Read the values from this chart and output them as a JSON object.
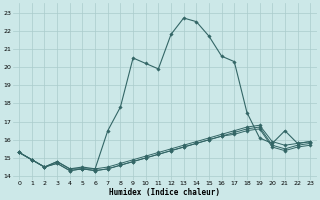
{
  "xlabel": "Humidex (Indice chaleur)",
  "bg_color": "#cce8e8",
  "grid_color": "#aacccc",
  "line_color": "#336666",
  "xlim": [
    -0.5,
    23.5
  ],
  "ylim": [
    13.8,
    23.5
  ],
  "yticks": [
    14,
    15,
    16,
    17,
    18,
    19,
    20,
    21,
    22,
    23
  ],
  "xticks": [
    0,
    1,
    2,
    3,
    4,
    5,
    6,
    7,
    8,
    9,
    10,
    11,
    12,
    13,
    14,
    15,
    16,
    17,
    18,
    19,
    20,
    21,
    22,
    23
  ],
  "series1_x": [
    0,
    1,
    2,
    3,
    4,
    5,
    6,
    7,
    8,
    9,
    10,
    11,
    12,
    13,
    14,
    15,
    16,
    17,
    18,
    19,
    20,
    21,
    22,
    23
  ],
  "series1_y": [
    15.3,
    14.9,
    14.5,
    14.8,
    14.4,
    14.5,
    14.4,
    16.5,
    17.8,
    20.5,
    20.2,
    19.9,
    21.8,
    22.7,
    22.5,
    21.7,
    20.6,
    20.3,
    17.5,
    16.1,
    15.8,
    16.5,
    15.8,
    15.9
  ],
  "series2_x": [
    0,
    1,
    2,
    3,
    4,
    5,
    6,
    7,
    8,
    9,
    10,
    11,
    12,
    13,
    14,
    15,
    16,
    17,
    18,
    19,
    20,
    21,
    22,
    23
  ],
  "series2_y": [
    15.3,
    14.9,
    14.5,
    14.8,
    14.4,
    14.4,
    14.4,
    14.5,
    14.7,
    14.9,
    15.1,
    15.3,
    15.5,
    15.7,
    15.9,
    16.1,
    16.3,
    16.5,
    16.7,
    16.8,
    15.9,
    15.7,
    15.8,
    15.9
  ],
  "series3_x": [
    0,
    1,
    2,
    3,
    4,
    5,
    6,
    7,
    8,
    9,
    10,
    11,
    12,
    13,
    14,
    15,
    16,
    17,
    18,
    19,
    20,
    21,
    22,
    23
  ],
  "series3_y": [
    15.3,
    14.9,
    14.5,
    14.7,
    14.3,
    14.4,
    14.3,
    14.4,
    14.6,
    14.8,
    15.0,
    15.2,
    15.4,
    15.6,
    15.8,
    16.0,
    16.2,
    16.4,
    16.6,
    16.7,
    15.7,
    15.5,
    15.7,
    15.8
  ],
  "series4_x": [
    0,
    1,
    2,
    3,
    4,
    5,
    6,
    7,
    8,
    9,
    10,
    11,
    12,
    13,
    14,
    15,
    16,
    17,
    18,
    19,
    20,
    21,
    22,
    23
  ],
  "series4_y": [
    15.3,
    14.9,
    14.5,
    14.7,
    14.3,
    14.4,
    14.3,
    14.4,
    14.6,
    14.8,
    15.0,
    15.2,
    15.4,
    15.6,
    15.8,
    16.0,
    16.2,
    16.3,
    16.5,
    16.6,
    15.6,
    15.4,
    15.6,
    15.7
  ]
}
